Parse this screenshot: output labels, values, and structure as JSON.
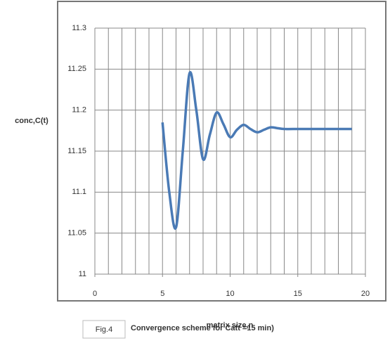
{
  "chart_data": {
    "type": "line",
    "y_label": "conc,C(t)",
    "x_label": "matrix size,n",
    "figure_label": "Fig.4",
    "caption": "Convergence  scheme for Catt =15 min)",
    "x": [
      5,
      5.5,
      6,
      6.5,
      7,
      7.5,
      8,
      8.5,
      9,
      9.5,
      10,
      10.5,
      11,
      11.5,
      12,
      12.5,
      13,
      13.5,
      14,
      15,
      16,
      17,
      18,
      19
    ],
    "series": [
      {
        "color": "#4a7ab5",
        "values": [
          11.185,
          11.1,
          11.057,
          11.15,
          11.245,
          11.2,
          11.14,
          11.17,
          11.197,
          11.183,
          11.167,
          11.176,
          11.182,
          11.177,
          11.173,
          11.176,
          11.179,
          11.178,
          11.177,
          11.177,
          11.177,
          11.177,
          11.177,
          11.177
        ]
      }
    ],
    "xlim": [
      0,
      20
    ],
    "xticks": [
      0,
      5,
      10,
      15,
      20
    ],
    "ylim": [
      11,
      11.3
    ],
    "yticks": [
      11,
      11.05,
      11.1,
      11.15,
      11.2,
      11.25,
      11.3
    ],
    "grid": true
  }
}
